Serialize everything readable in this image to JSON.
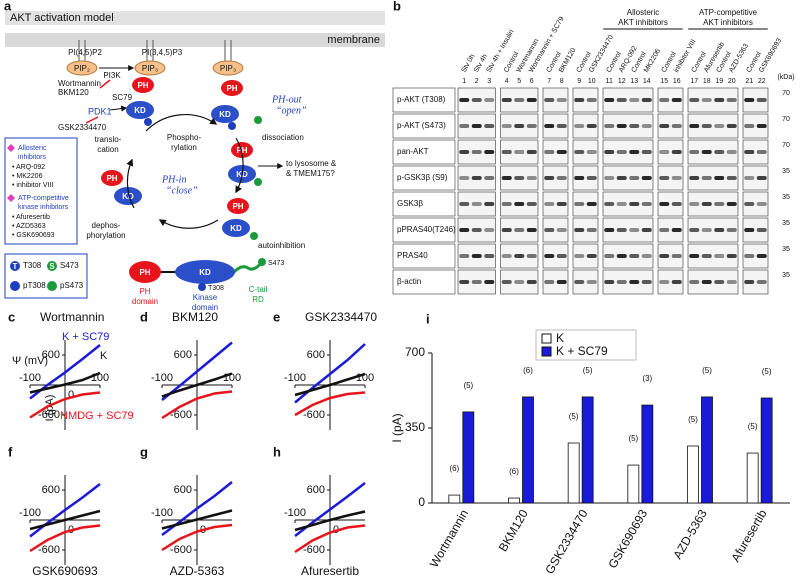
{
  "diagram": {
    "panel": "a",
    "title": "AKT activation model",
    "membrane": "membrane",
    "lipids": [
      "PI(4,5)P2",
      "PI(3,4,5)P3"
    ],
    "pip": [
      "PIP₂",
      "PIP₃",
      "PIP₃"
    ],
    "pi3k": "PI3K",
    "pi3k_inhibitors": [
      "Wortmannin",
      "BKM120"
    ],
    "sc79": "SC79",
    "pdk1": "PDK1",
    "pdk1_inhibitor": "GSK2334470",
    "ph": "PH",
    "kd": "KD",
    "steps": {
      "phosphorylation": [
        "Phospho-",
        "rylation"
      ],
      "dissociation": "dissociation",
      "translocation": [
        "translo-",
        "cation"
      ],
      "dephosphorylation": [
        "dephos-",
        "phorylation"
      ],
      "autoinhibition": "autoinhibition"
    },
    "states": {
      "open": [
        "PH-out",
        "“open”"
      ],
      "close": [
        "PH-in",
        "“close”"
      ]
    },
    "destination": [
      "to lysosome &",
      "& TMEM175?"
    ],
    "inhibitor_box": {
      "allosteric": [
        "Allosteric",
        "inhibitors"
      ],
      "allosteric_list": [
        "• ARQ-092",
        "• MK2206",
        "• inhibitor VIII"
      ],
      "atp": [
        "ATP-competitive",
        "kinase inhibitors"
      ],
      "atp_list": [
        "• Afuresertib",
        "• AZD5363",
        "• GSK690693"
      ]
    },
    "site_legend": {
      "t": "T",
      "s": "S",
      "items": [
        "T308",
        "S473",
        "pT308",
        "pS473"
      ]
    },
    "domains": {
      "ph_label": [
        "PH",
        "domain"
      ],
      "kd_label": [
        "Kinase",
        "domain"
      ],
      "t308": "T308",
      "s473": "S473",
      "tail_label": [
        "C-tail",
        "RD"
      ]
    }
  },
  "blot": {
    "panel": "b",
    "group_headers": [
      [
        "Allosteric",
        "AKT inhibitors"
      ],
      [
        "ATP-competitive",
        "AKT inhibitors"
      ]
    ],
    "lanes": [
      "Stv 0h",
      "Stv 4h",
      "Stv 4h + Insulin",
      "Control",
      "Wortmannin",
      "Wortmannin + SC79",
      "Control",
      "BKM120",
      "Control",
      "GSK2334470",
      "Control",
      "ARQ-092",
      "Control",
      "MK2206",
      "Control",
      "inhibitor VIII",
      "Control",
      "Afuresertib",
      "Control",
      "AZD-5363",
      "Control",
      "GSK690693"
    ],
    "lane_numbers": [
      1,
      2,
      3,
      4,
      5,
      6,
      7,
      8,
      9,
      10,
      11,
      12,
      13,
      14,
      15,
      16,
      17,
      18,
      19,
      20,
      21,
      22
    ],
    "rows": [
      "p-AKT (T308)",
      "p-AKT (S473)",
      "pan-AKT",
      "p-GSK3β (S9)",
      "GSK3β",
      "pPRAS40(T246)",
      "PRAS40",
      "β-actin"
    ],
    "kda_unit": "(kDa)",
    "kda": [
      "70",
      "70",
      "70",
      "35",
      "35",
      "35",
      "35",
      "35"
    ]
  },
  "chart_data": [
    {
      "panel": "c",
      "type": "line",
      "title": "Wortmannin",
      "xlabel": "Ψ (mV)",
      "ylabel": "I (pA)",
      "x": [
        -100,
        -50,
        0,
        50,
        100
      ],
      "xlim": [
        -100,
        100
      ],
      "ylim": [
        -900,
        900
      ],
      "xticks": [
        -100,
        0,
        100
      ],
      "yticks": [
        -600,
        600
      ],
      "series": [
        {
          "name": "K + SC79",
          "color": "#1a1adb",
          "values": [
            -270,
            0,
            250,
            520,
            800
          ]
        },
        {
          "name": "K",
          "color": "#111111",
          "values": [
            -150,
            -70,
            10,
            100,
            240
          ]
        },
        {
          "name": "NMDG + SC79",
          "color": "#e8141b",
          "values": [
            -650,
            -430,
            -280,
            -190,
            -150
          ]
        }
      ]
    },
    {
      "panel": "d",
      "type": "line",
      "title": "BKM120",
      "x": [
        -100,
        -50,
        0,
        50,
        100
      ],
      "xlim": [
        -100,
        100
      ],
      "ylim": [
        -900,
        900
      ],
      "xticks": [
        -100,
        100
      ],
      "yticks": [
        -600,
        600
      ],
      "series": [
        {
          "color": "#1a1adb",
          "values": [
            -300,
            -20,
            270,
            560,
            850
          ]
        },
        {
          "color": "#111111",
          "values": [
            -230,
            -110,
            0,
            110,
            230
          ]
        },
        {
          "color": "#e8141b",
          "values": [
            -660,
            -440,
            -270,
            -170,
            -130
          ]
        }
      ]
    },
    {
      "panel": "e",
      "type": "line",
      "title": "GSK2334470",
      "x": [
        -100,
        -50,
        0,
        50,
        100
      ],
      "xlim": [
        -100,
        100
      ],
      "ylim": [
        -900,
        900
      ],
      "xticks": [
        -100,
        100
      ],
      "yticks": [
        -600,
        600
      ],
      "series": [
        {
          "color": "#1a1adb",
          "values": [
            -350,
            -60,
            220,
            500,
            820
          ]
        },
        {
          "color": "#111111",
          "values": [
            -200,
            -100,
            0,
            110,
            220
          ]
        },
        {
          "color": "#e8141b",
          "values": [
            -600,
            -400,
            -260,
            -180,
            -150
          ]
        }
      ]
    },
    {
      "panel": "f",
      "type": "line",
      "title": "GSK690693",
      "x": [
        -100,
        -50,
        0,
        50,
        100
      ],
      "xlim": [
        -100,
        100
      ],
      "ylim": [
        -900,
        900
      ],
      "xticks": [
        -100,
        0
      ],
      "yticks": [
        -600,
        600
      ],
      "series": [
        {
          "color": "#1a1adb",
          "values": [
            -330,
            -60,
            200,
            450,
            720
          ]
        },
        {
          "color": "#111111",
          "values": [
            -180,
            -90,
            0,
            90,
            180
          ]
        },
        {
          "color": "#e8141b",
          "values": [
            -620,
            -400,
            -240,
            -150,
            -110
          ]
        }
      ]
    },
    {
      "panel": "g",
      "type": "line",
      "title": "AZD-5363",
      "x": [
        -100,
        -50,
        0,
        50,
        100
      ],
      "xlim": [
        -100,
        100
      ],
      "ylim": [
        -900,
        900
      ],
      "xticks": [
        -100,
        0
      ],
      "yticks": [
        -600,
        600
      ],
      "series": [
        {
          "color": "#1a1adb",
          "values": [
            -300,
            -40,
            230,
            480,
            760
          ]
        },
        {
          "color": "#111111",
          "values": [
            -170,
            -80,
            10,
            100,
            190
          ]
        },
        {
          "color": "#e8141b",
          "values": [
            -600,
            -380,
            -230,
            -140,
            -100
          ]
        }
      ]
    },
    {
      "panel": "h",
      "type": "line",
      "title": "Afuresertib",
      "x": [
        -100,
        -50,
        0,
        50,
        100
      ],
      "xlim": [
        -100,
        100
      ],
      "ylim": [
        -900,
        900
      ],
      "xticks": [
        -100,
        0
      ],
      "yticks": [
        -600,
        600
      ],
      "series": [
        {
          "color": "#1a1adb",
          "values": [
            -320,
            -50,
            210,
            470,
            740
          ]
        },
        {
          "color": "#111111",
          "values": [
            -200,
            -100,
            0,
            90,
            170
          ]
        },
        {
          "color": "#e8141b",
          "values": [
            -640,
            -410,
            -250,
            -150,
            -110
          ]
        }
      ]
    },
    {
      "panel": "i",
      "type": "bar",
      "ylabel": "I (pA)",
      "categories": [
        "Wortmannin",
        "BKM120",
        "GSK2334470",
        "GSK690693",
        "AZD-5363",
        "Afuresertib"
      ],
      "ylim": [
        0,
        700
      ],
      "yticks": [
        0,
        350,
        700
      ],
      "legend": "upper left",
      "series": [
        {
          "name": "K",
          "color": "#ffffff",
          "values": [
            37,
            23,
            280,
            177,
            266,
            233
          ],
          "n_labels": [
            "(6)",
            "(6)",
            "(5)",
            "(5)",
            "(5)",
            "(5)"
          ]
        },
        {
          "name": "K + SC79",
          "color": "#1a1adb",
          "values": [
            425,
            495,
            495,
            457,
            495,
            490
          ],
          "n_labels": [
            "(5)",
            "(6)",
            "(5)",
            "(3)",
            "(5)",
            "(5)"
          ]
        }
      ]
    }
  ]
}
